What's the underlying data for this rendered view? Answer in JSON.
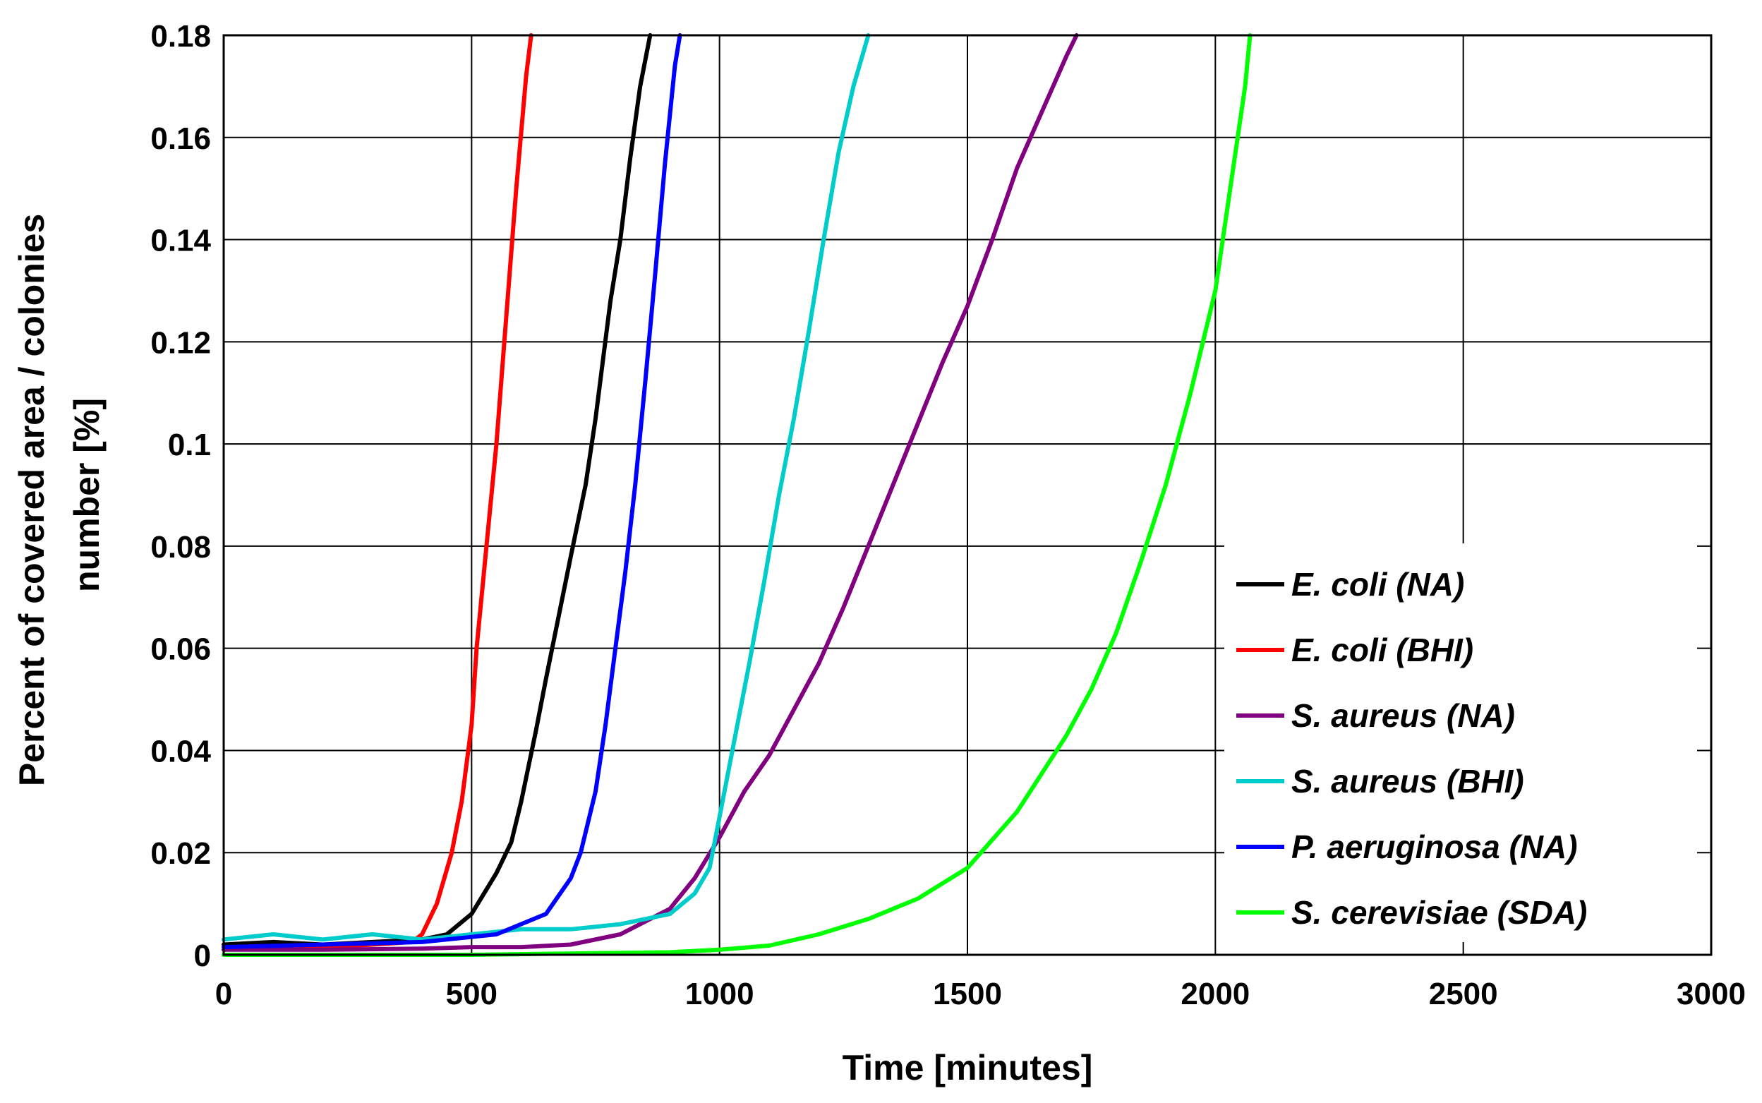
{
  "chart_data": {
    "type": "line",
    "title": "",
    "xlabel": "Time [minutes]",
    "ylabel": "Percent of covered area / colonies number [%]",
    "ylabel_lines": [
      "Percent of covered area / colonies",
      "number [%]"
    ],
    "xlim": [
      0,
      3000
    ],
    "ylim": [
      0,
      0.18
    ],
    "xticks": [
      0,
      500,
      1000,
      1500,
      2000,
      2500,
      3000
    ],
    "xtick_labels": [
      "0",
      "500",
      "1000",
      "1500",
      "2000",
      "2500",
      "3000"
    ],
    "yticks": [
      0,
      0.02,
      0.04,
      0.06,
      0.08,
      0.1,
      0.12,
      0.14,
      0.16,
      0.18
    ],
    "ytick_labels": [
      "0",
      "0.02",
      "0.04",
      "0.06",
      "0.08",
      "0.1",
      "0.12",
      "0.14",
      "0.16",
      "0.18"
    ],
    "grid": true,
    "legend_position": "right",
    "series": [
      {
        "name": "E. coli (NA)",
        "color": "#000000",
        "x": [
          0,
          100,
          200,
          300,
          400,
          450,
          500,
          550,
          580,
          600,
          630,
          650,
          700,
          730,
          750,
          780,
          800,
          820,
          840,
          860
        ],
        "y": [
          0.002,
          0.0025,
          0.002,
          0.0025,
          0.003,
          0.004,
          0.008,
          0.016,
          0.022,
          0.03,
          0.044,
          0.054,
          0.078,
          0.092,
          0.105,
          0.128,
          0.14,
          0.156,
          0.17,
          0.18
        ]
      },
      {
        "name": "E. coli (BHI)",
        "color": "#ff0000",
        "x": [
          0,
          100,
          200,
          300,
          380,
          400,
          430,
          460,
          480,
          500,
          510,
          530,
          550,
          570,
          590,
          610,
          620
        ],
        "y": [
          0.001,
          0.0015,
          0.0015,
          0.002,
          0.0025,
          0.004,
          0.01,
          0.02,
          0.03,
          0.045,
          0.06,
          0.08,
          0.1,
          0.125,
          0.15,
          0.172,
          0.18
        ]
      },
      {
        "name": "S. aureus (NA)",
        "color": "#800080",
        "x": [
          0,
          200,
          400,
          500,
          600,
          700,
          800,
          900,
          950,
          1000,
          1050,
          1100,
          1150,
          1200,
          1250,
          1300,
          1350,
          1400,
          1450,
          1500,
          1550,
          1600,
          1650,
          1700,
          1720
        ],
        "y": [
          0.001,
          0.001,
          0.0012,
          0.0015,
          0.0015,
          0.002,
          0.004,
          0.009,
          0.015,
          0.023,
          0.032,
          0.039,
          0.048,
          0.057,
          0.068,
          0.08,
          0.092,
          0.104,
          0.116,
          0.127,
          0.14,
          0.154,
          0.165,
          0.176,
          0.18
        ]
      },
      {
        "name": "S. aureus (BHI)",
        "color": "#00cccc",
        "x": [
          0,
          100,
          200,
          300,
          400,
          500,
          600,
          700,
          800,
          900,
          950,
          980,
          1000,
          1030,
          1060,
          1090,
          1120,
          1150,
          1180,
          1210,
          1240,
          1270,
          1300
        ],
        "y": [
          0.003,
          0.004,
          0.003,
          0.004,
          0.003,
          0.004,
          0.005,
          0.005,
          0.006,
          0.008,
          0.012,
          0.017,
          0.027,
          0.042,
          0.057,
          0.073,
          0.09,
          0.105,
          0.122,
          0.14,
          0.157,
          0.17,
          0.18
        ]
      },
      {
        "name": "P. aeruginosa (NA)",
        "color": "#0000ff",
        "x": [
          0,
          200,
          400,
          550,
          650,
          700,
          720,
          750,
          770,
          790,
          810,
          830,
          850,
          870,
          890,
          910,
          920
        ],
        "y": [
          0.0015,
          0.002,
          0.0025,
          0.004,
          0.008,
          0.015,
          0.02,
          0.032,
          0.045,
          0.06,
          0.075,
          0.092,
          0.112,
          0.133,
          0.155,
          0.174,
          0.18
        ]
      },
      {
        "name": "S. cerevisiae (SDA)",
        "color": "#00ff00",
        "x": [
          0,
          500,
          900,
          1000,
          1100,
          1200,
          1300,
          1400,
          1500,
          1600,
          1700,
          1750,
          1800,
          1850,
          1900,
          1950,
          2000,
          2030,
          2060,
          2070
        ],
        "y": [
          0,
          0,
          0.0005,
          0.001,
          0.0018,
          0.004,
          0.007,
          0.011,
          0.017,
          0.028,
          0.043,
          0.052,
          0.063,
          0.077,
          0.092,
          0.11,
          0.13,
          0.15,
          0.17,
          0.18
        ]
      }
    ]
  }
}
